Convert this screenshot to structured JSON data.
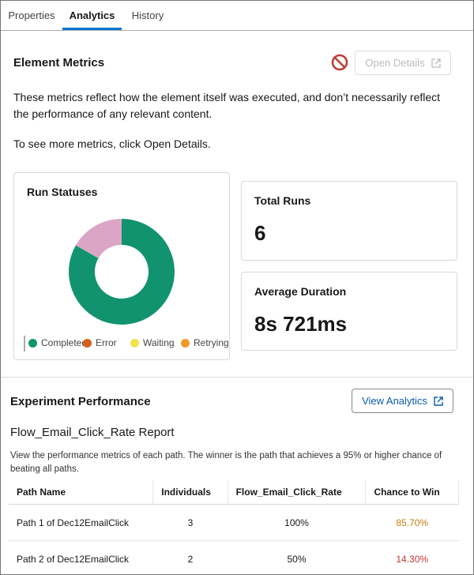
{
  "tabs": [
    "Properties",
    "Analytics",
    "History"
  ],
  "active_tab": 1,
  "element_metrics": {
    "title": "Element Metrics",
    "button": "Open Details",
    "description": "These metrics reflect how the element itself was executed, and don’t necessarily reflect the performance of any relevant content.",
    "hint": "To see more metrics, click Open Details."
  },
  "chart_data": {
    "type": "donut",
    "title": "Run Statuses",
    "categories": [
      "Completed",
      "Error",
      "Waiting",
      "Retrying",
      null
    ],
    "values": [
      5,
      0,
      0,
      0,
      1
    ],
    "colors": [
      "#12936f",
      "#d4621c",
      "#f2e24b",
      "#f19a2a",
      "#dba6c6"
    ]
  },
  "total_runs": {
    "label": "Total Runs",
    "value": 6
  },
  "average_duration": {
    "label": "Average Duration",
    "value": "8s 721ms"
  },
  "experiment": {
    "title": "Experiment Performance",
    "button": "View Analytics",
    "report_title": "Flow_Email_Click_Rate Report",
    "description": "View the performance metrics of each path. The winner is the path that achieves a 95% or higher chance of beating all paths.",
    "table": {
      "headers": [
        "Path Name",
        "Individuals",
        "Flow_Email_Click_Rate",
        "Chance to Win"
      ],
      "rows": [
        [
          "Path 1 of Dec12EmailClick",
          3,
          "100%",
          "85.70%"
        ],
        [
          "Path 2 of Dec12EmailClick",
          2,
          "50%",
          "14.30%"
        ]
      ],
      "chance_colors": [
        "#c77b14",
        "#c23934"
      ]
    }
  }
}
